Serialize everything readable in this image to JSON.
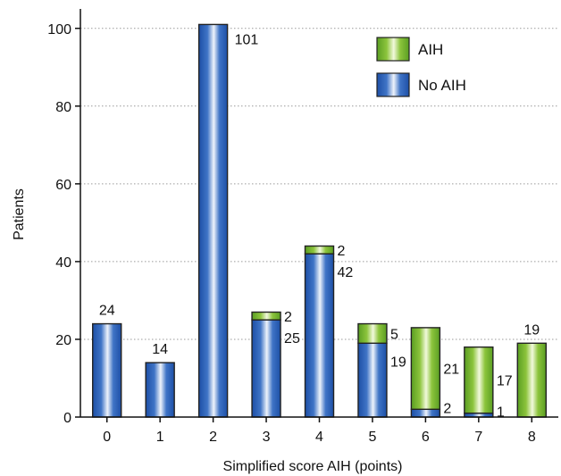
{
  "chart_data": {
    "type": "bar",
    "stacked": true,
    "xlabel": "Simplified score AIH (points)",
    "ylabel": "Patients",
    "ylim": [
      0,
      105
    ],
    "yticks": [
      0,
      20,
      40,
      60,
      80,
      100
    ],
    "grid": "horizontal dotted",
    "legend_position": "top-right",
    "categories": [
      "0",
      "1",
      "2",
      "3",
      "4",
      "5",
      "6",
      "7",
      "8"
    ],
    "series": [
      {
        "name": "No AIH",
        "color": "#1f4fa8",
        "values": [
          24,
          14,
          101,
          25,
          42,
          19,
          2,
          1,
          0
        ]
      },
      {
        "name": "AIH",
        "color": "#6aa82a",
        "values": [
          0,
          0,
          0,
          2,
          2,
          5,
          21,
          17,
          19
        ]
      }
    ],
    "legend": [
      {
        "label": "AIH",
        "color": "#6aa82a"
      },
      {
        "label": "No AIH",
        "color": "#1f4fa8"
      }
    ]
  }
}
